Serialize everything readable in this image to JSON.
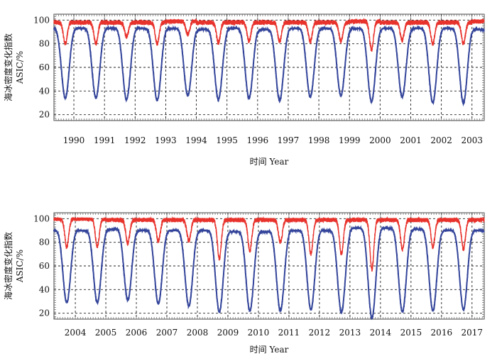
{
  "chart_data": [
    {
      "type": "line",
      "xlabel": "时间 Year",
      "ylabel_line1": "海冰密度变化指数",
      "ylabel_line2": "ASIC/%",
      "ylim": [
        15,
        105
      ],
      "yticks": [
        20,
        40,
        60,
        80,
        100
      ],
      "xlim": [
        1989.35,
        2003.4
      ],
      "year_labels": [
        "1990",
        "1991",
        "1992",
        "1993",
        "1994",
        "1995",
        "1996",
        "1997",
        "1998",
        "1999",
        "2000",
        "2001",
        "2002",
        "2003"
      ],
      "grid": true,
      "series": [
        {
          "color": "#e8322c",
          "x": [
            1990,
            1991,
            1992,
            1993,
            1994,
            1995,
            1996,
            1997,
            1998,
            1999,
            2000,
            2001,
            2002,
            2003
          ],
          "values": [
            98,
            98,
            98,
            99,
            98,
            98,
            98,
            98,
            98,
            99,
            98,
            98,
            98,
            99
          ],
          "annual_min": [
            80,
            86,
            80,
            88,
            81,
            82,
            82,
            82,
            82,
            75,
            83,
            80,
            80,
            82
          ]
        },
        {
          "color": "#33449a",
          "x": [
            1990,
            1991,
            1992,
            1993,
            1994,
            1995,
            1996,
            1997,
            1998,
            1999,
            2000,
            2001,
            2002,
            2003
          ],
          "values": [
            93,
            93,
            93,
            93,
            92,
            93,
            92,
            93,
            93,
            93,
            93,
            93,
            93,
            92
          ],
          "annual_min": [
            34,
            33,
            32,
            36,
            33,
            34,
            32,
            35,
            36,
            31,
            35,
            30,
            30,
            28
          ]
        }
      ]
    },
    {
      "type": "line",
      "xlabel": "时间 Year",
      "ylabel_line1": "海冰密度变化指数",
      "ylabel_line2": "ASIC/%",
      "ylim": [
        15,
        105
      ],
      "yticks": [
        20,
        40,
        60,
        80,
        100
      ],
      "xlim": [
        2003.3,
        2017.4
      ],
      "year_labels": [
        "2004",
        "2005",
        "2006",
        "2007",
        "2008",
        "2009",
        "2010",
        "2011",
        "2012",
        "2013",
        "2014",
        "2015",
        "2016",
        "2017"
      ],
      "grid": true,
      "series": [
        {
          "color": "#e8322c",
          "x": [
            2004,
            2005,
            2006,
            2007,
            2008,
            2009,
            2010,
            2011,
            2012,
            2013,
            2014,
            2015,
            2016,
            2017
          ],
          "values": [
            100,
            99,
            99,
            99,
            99,
            99,
            99,
            99,
            99,
            99,
            99,
            99,
            99,
            99
          ],
          "annual_min": [
            76,
            79,
            81,
            81,
            66,
            73,
            80,
            70,
            70,
            57,
            74,
            76,
            74,
            52
          ]
        },
        {
          "color": "#33449a",
          "x": [
            2004,
            2005,
            2006,
            2007,
            2008,
            2009,
            2010,
            2011,
            2012,
            2013,
            2014,
            2015,
            2016,
            2017
          ],
          "values": [
            90,
            91,
            90,
            90,
            90,
            89,
            89,
            90,
            90,
            92,
            92,
            91,
            90,
            90
          ],
          "annual_min": [
            29,
            31,
            28,
            26,
            21,
            22,
            22,
            23,
            21,
            16,
            21,
            22,
            23,
            18
          ]
        }
      ]
    }
  ]
}
